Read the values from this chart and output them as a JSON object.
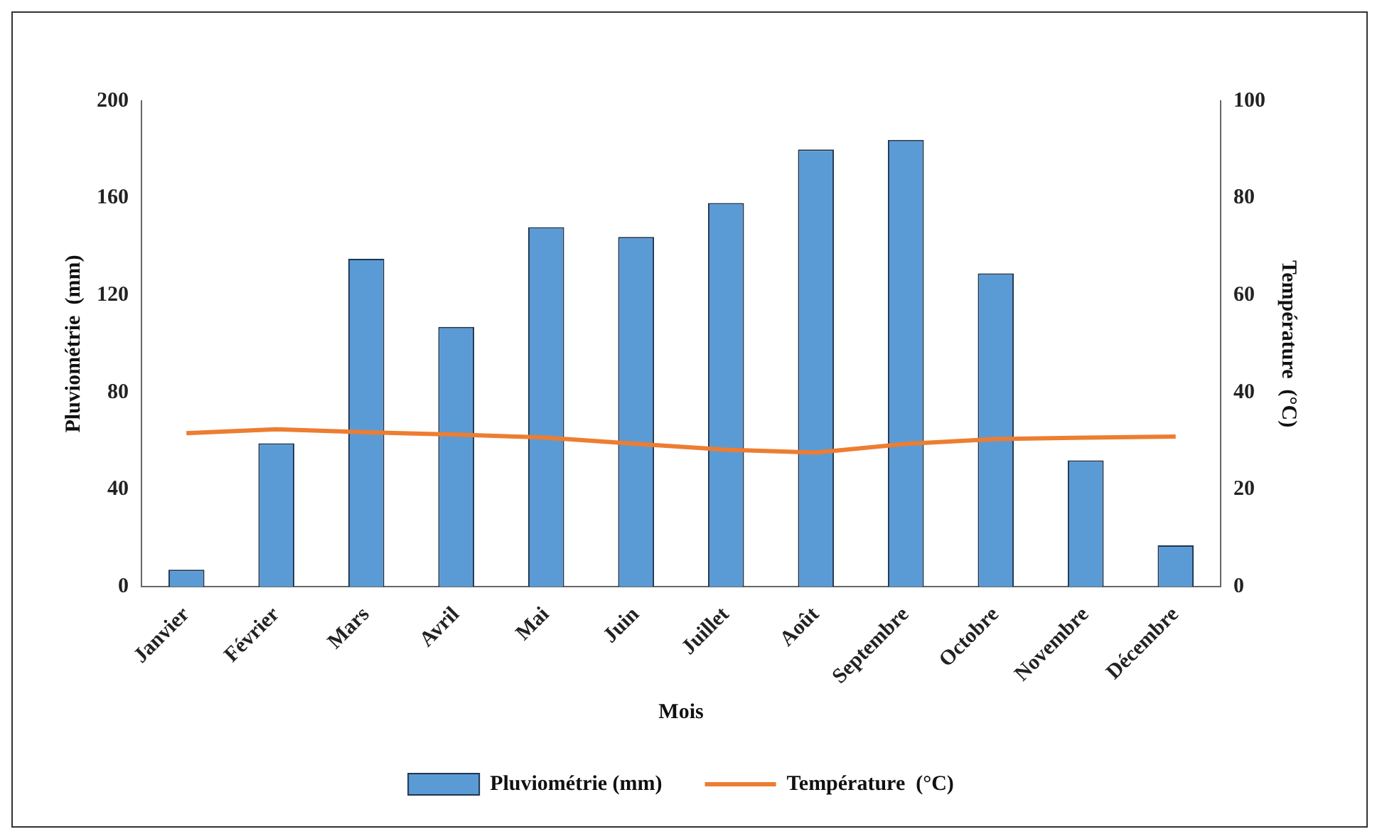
{
  "chart_data": {
    "type": "bar",
    "xlabel": "Mois",
    "ylabel": "Pluviométrie  (mm)",
    "y2label": "Température  (°C)",
    "categories": [
      "Janvier",
      "Février",
      "Mars",
      "Avril",
      "Mai",
      "Juin",
      "Juillet",
      "Août",
      "Septembre",
      "Octobre",
      "Novembre",
      "Décembre"
    ],
    "series": [
      {
        "name": "Pluviométrie (mm)",
        "color": "#5b9bd5",
        "values": [
          7,
          59,
          135,
          107,
          148,
          144,
          158,
          180,
          184,
          129,
          52,
          17
        ]
      },
      {
        "name": "Température  (°C)",
        "type": "line",
        "axis": "y2",
        "color": "#ed7d31",
        "values": [
          31.6,
          32.4,
          31.8,
          31.3,
          30.7,
          29.4,
          28.2,
          27.6,
          29.4,
          30.4,
          30.7,
          30.9
        ]
      }
    ],
    "ylim": [
      0,
      200
    ],
    "yticks": [
      0,
      40,
      80,
      120,
      160,
      200
    ],
    "y2lim": [
      0,
      100
    ],
    "y2ticks": [
      0,
      20,
      40,
      60,
      80,
      100
    ],
    "grid": false,
    "legend": "bottom",
    "marker": "none"
  }
}
